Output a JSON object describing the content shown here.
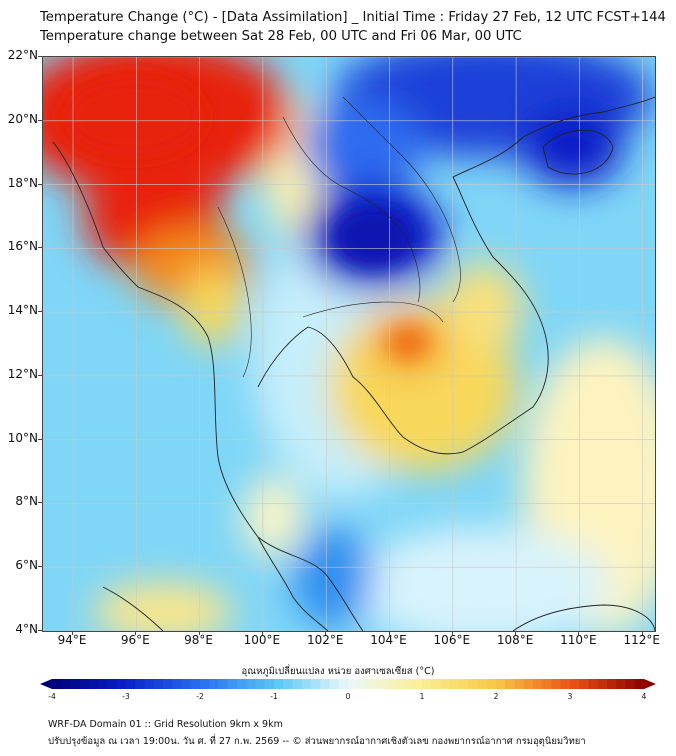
{
  "header": {
    "title_line1": "Temperature Change (°C) - [Data Assimilation] _ Initial Time : Friday 27 Feb, 12 UTC FCST+144",
    "title_line2": "Temperature change between Sat 28 Feb, 00 UTC and Fri 06 Mar, 00 UTC"
  },
  "map": {
    "lat_labels": [
      "22°N",
      "20°N",
      "18°N",
      "16°N",
      "14°N",
      "12°N",
      "10°N",
      "8°N",
      "6°N",
      "4°N"
    ],
    "lon_labels": [
      "94°E",
      "96°E",
      "98°E",
      "100°E",
      "102°E",
      "104°E",
      "106°E",
      "108°E",
      "110°E",
      "112°E"
    ],
    "colors": {
      "deep_blue": "#0a1fc8",
      "blue": "#2f6cf0",
      "light_blue": "#5fc8f5",
      "cyan": "#a8e6fb",
      "pale": "#e8f7fb",
      "pale_yellow": "#fdf5b8",
      "yellow": "#f8d85a",
      "orange": "#f28a1e",
      "red": "#e8220f",
      "coast": "#222222",
      "grid": "#c8c8c8"
    }
  },
  "colorbar": {
    "title": "อุณหภูมิเปลี่ยนแปลง หน่วย องศาเซลเซียส (°C)",
    "tick_labels": [
      "-4",
      "-3",
      "-2",
      "-1",
      "0",
      "1",
      "2",
      "3",
      "4"
    ],
    "min": -4,
    "max": 4
  },
  "footer": {
    "line1": "WRF-DA Domain 01 :: Grid Resolution 9km x 9km",
    "line2": "ปรับปรุงข้อมูล ณ เวลา 19:00น. วัน ศ. ที่ 27 ก.พ. 2569 -- © ส่วนพยากรณ์อากาศเชิงตัวเลข กองพยากรณ์อากาศ กรมอุตุนิยมวิทยา"
  }
}
